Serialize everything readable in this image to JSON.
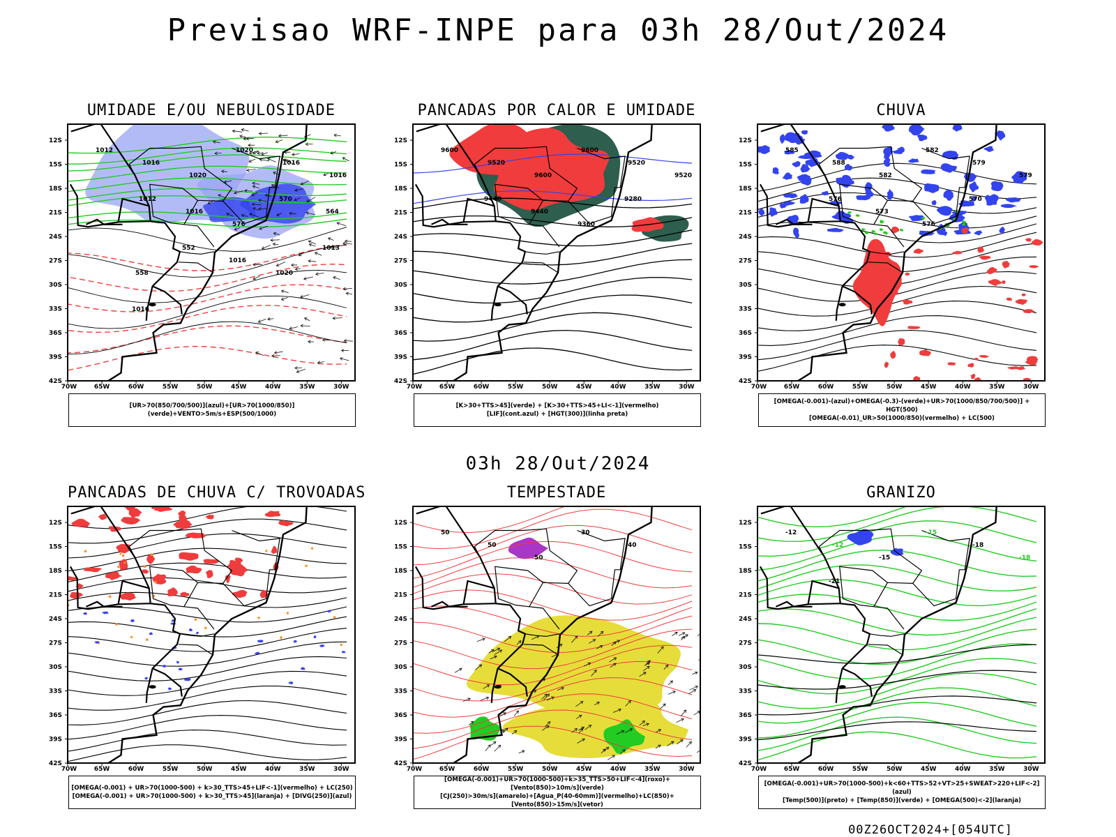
{
  "header": {
    "title": "Previsao WRF-INPE  para 03h 28/Out/2024",
    "mid_date": "03h 28/Out/2024",
    "footer": "00Z26OCT2024+[054UTC]"
  },
  "axes": {
    "lat_labels": [
      "12S",
      "15S",
      "18S",
      "21S",
      "24S",
      "27S",
      "30S",
      "33S",
      "36S",
      "39S",
      "42S"
    ],
    "lon_labels": [
      "70W",
      "65W",
      "60W",
      "55W",
      "50W",
      "45W",
      "40W",
      "35W",
      "30W"
    ]
  },
  "colors": {
    "blue": "#3344ee",
    "light_blue": "#9aa4f4",
    "green": "#22cc22",
    "red": "#f03c3c",
    "dark_green": "#2d5e4e",
    "orange": "#ff8c1a",
    "yellow": "#e6dd3a",
    "purple": "#a020c0"
  },
  "panels": [
    {
      "title": "UMIDADE E/OU NEBULOSIDADE",
      "legend": [
        "[UR>70(850/700/500)](azul)+[UR>70(1000/850)](verde)+VENTO>5m/s+ESP(500/1000)"
      ],
      "contour_labels": [
        "1012",
        "1016",
        "1020",
        "1020",
        "1016",
        "1016",
        "1012",
        "1016",
        "576",
        "570",
        "564",
        "558",
        "552",
        "1016",
        "1020",
        "1013",
        "1016"
      ]
    },
    {
      "title": "PANCADAS POR CALOR E UMIDADE",
      "legend": [
        "[K>30+TTS>45](verde) + [K>30+TTS>45+LI<-1](vermelho)",
        "[LIF](cont.azul) + [HGT(300)](linha preta)"
      ],
      "contour_labels": [
        "9600",
        "9520",
        "9600",
        "9600",
        "9520",
        "9520",
        "9440",
        "9440",
        "9360",
        "9280"
      ]
    },
    {
      "title": "CHUVA",
      "legend": [
        "[OMEGA(-0.001)-(azul)+OMEGA(-0.3)-(verde)+UR>70(1000/850/700/500)] + HGT(500)",
        "[OMEGA(-0.01)_UR>50(1000/850)(vermelho) + LC(500)"
      ],
      "contour_labels": [
        "585",
        "588",
        "582",
        "582",
        "579",
        "579",
        "576",
        "573",
        "576",
        "570"
      ]
    },
    {
      "title": "PANCADAS DE CHUVA C/ TROVOADAS",
      "legend": [
        "[OMEGA(-0.001) + UR>70(1000-500) + k>30_TTS>45+LIF<-1](vermelho) + LC(250)",
        "[OMEGA(-0.001) + UR>70(1000-500) + k>30_TTS>45](laranja) + [DIVG(250)](azul)"
      ],
      "contour_labels": []
    },
    {
      "title": "TEMPESTADE",
      "legend": [
        "[OMEGA(-0.001)+UR>70(1000-500)+k>35_TTS>50+LIF<-4](roxo)+[Vento(850)>10m/s](verde)",
        "[CJ(250)>30m/s](amarelo)+[Agua_P(40-60mm)](vermelho)+LC(850)+[Vento(850)>15m/s](vetor)"
      ],
      "contour_labels": [
        "50",
        "50",
        "50",
        "30",
        "40"
      ]
    },
    {
      "title": "GRANIZO",
      "legend": [
        "[OMEGA(-0.001)+UR>70(1000-500)+k<60+TTS>52+VT>25+SWEAT>220+LIF<-2](azul)",
        "[Temp(500)](preto) + [Temp(850)](verde) + [OMEGA(500)<-2](laranja)"
      ],
      "contour_labels": [
        "-12",
        "-12",
        "-15",
        "-15",
        "-18",
        "-18",
        "-21"
      ]
    }
  ]
}
